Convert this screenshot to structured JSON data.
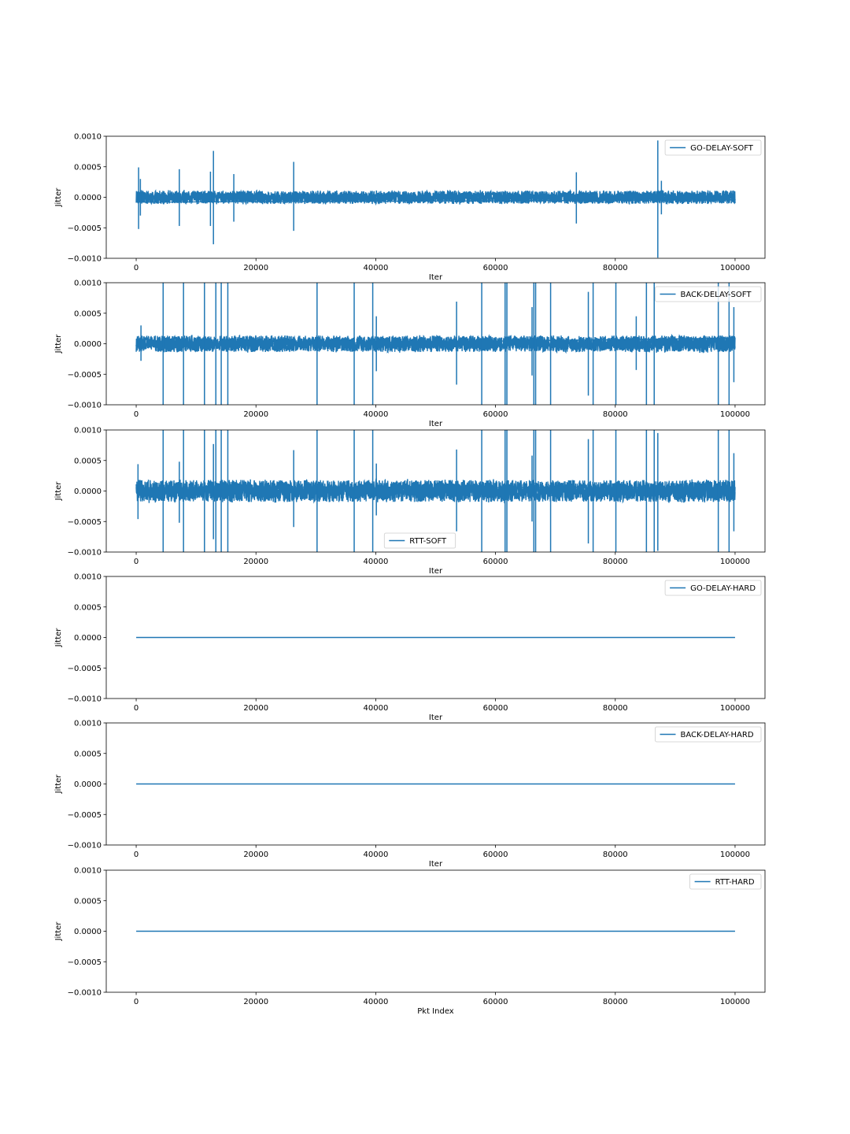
{
  "chart_data": [
    {
      "type": "line",
      "xlabel": "Iter",
      "ylabel": "Jitter",
      "xlim": [
        -5000,
        105000
      ],
      "ylim": [
        -0.001,
        0.001
      ],
      "xticks": [
        0,
        20000,
        40000,
        60000,
        80000,
        100000
      ],
      "yticks": [
        -0.001,
        -0.0005,
        0.0,
        0.0005,
        0.001
      ],
      "xtick_labels": [
        "0",
        "20000",
        "40000",
        "60000",
        "80000",
        "100000"
      ],
      "ytick_labels": [
        "−0.0010",
        "−0.0005",
        "0.0000",
        "0.0005",
        "0.0010"
      ],
      "grid": false,
      "legend_position": "upper right",
      "series": [
        {
          "name": "GO-DELAY-SOFT",
          "x_range": [
            0,
            100000
          ],
          "noise_amplitude": 0.00012,
          "spikes": [
            {
              "x": 400,
              "high": 0.00049,
              "low": -0.00052
            },
            {
              "x": 700,
              "high": 0.0003,
              "low": -0.0003
            },
            {
              "x": 7200,
              "high": 0.00046,
              "low": -0.00047
            },
            {
              "x": 12400,
              "high": 0.00042,
              "low": -0.00047
            },
            {
              "x": 12900,
              "high": 0.00076,
              "low": -0.00077
            },
            {
              "x": 16300,
              "high": 0.00038,
              "low": -0.0004
            },
            {
              "x": 26300,
              "high": 0.00058,
              "low": -0.00055
            },
            {
              "x": 73500,
              "high": 0.00041,
              "low": -0.00043
            },
            {
              "x": 87100,
              "high": 0.00093,
              "low": -0.00099
            },
            {
              "x": 87700,
              "high": 0.00027,
              "low": -0.00028
            }
          ]
        }
      ]
    },
    {
      "type": "line",
      "xlabel": "Iter",
      "ylabel": "Jitter",
      "xlim": [
        -5000,
        105000
      ],
      "ylim": [
        -0.001,
        0.001
      ],
      "xticks": [
        0,
        20000,
        40000,
        60000,
        80000,
        100000
      ],
      "yticks": [
        -0.001,
        -0.0005,
        0.0,
        0.0005,
        0.001
      ],
      "xtick_labels": [
        "0",
        "20000",
        "40000",
        "60000",
        "80000",
        "100000"
      ],
      "ytick_labels": [
        "−0.0010",
        "−0.0005",
        "0.0000",
        "0.0005",
        "0.0010"
      ],
      "grid": false,
      "legend_position": "upper right",
      "series": [
        {
          "name": "BACK-DELAY-SOFT",
          "x_range": [
            0,
            100000
          ],
          "noise_amplitude": 0.00015,
          "spikes": [
            {
              "x": 800,
              "high": 0.0003,
              "low": -0.00028
            },
            {
              "x": 4500,
              "high": 0.0012,
              "low": -0.0012
            },
            {
              "x": 7900,
              "high": 0.0012,
              "low": -0.0012
            },
            {
              "x": 11400,
              "high": 0.0012,
              "low": -0.0012
            },
            {
              "x": 13300,
              "high": 0.0012,
              "low": -0.0012
            },
            {
              "x": 14200,
              "high": 0.0012,
              "low": -0.0012
            },
            {
              "x": 15300,
              "high": 0.0012,
              "low": -0.0012
            },
            {
              "x": 30200,
              "high": 0.0012,
              "low": -0.0012
            },
            {
              "x": 36400,
              "high": 0.0012,
              "low": -0.0012
            },
            {
              "x": 39500,
              "high": 0.0012,
              "low": -0.0012
            },
            {
              "x": 40100,
              "high": 0.00045,
              "low": -0.00045
            },
            {
              "x": 53500,
              "high": 0.00069,
              "low": -0.00067
            },
            {
              "x": 57700,
              "high": 0.0012,
              "low": -0.0012
            },
            {
              "x": 61600,
              "high": 0.0012,
              "low": -0.0012
            },
            {
              "x": 61900,
              "high": 0.0012,
              "low": -0.0012
            },
            {
              "x": 66100,
              "high": 0.0006,
              "low": -0.00052
            },
            {
              "x": 66400,
              "high": 0.0012,
              "low": -0.0012
            },
            {
              "x": 66700,
              "high": 0.0012,
              "low": -0.0012
            },
            {
              "x": 69200,
              "high": 0.0012,
              "low": -0.0012
            },
            {
              "x": 75500,
              "high": 0.00085,
              "low": -0.00085
            },
            {
              "x": 76300,
              "high": 0.0012,
              "low": -0.0012
            },
            {
              "x": 80100,
              "high": 0.0012,
              "low": -0.0012
            },
            {
              "x": 83500,
              "high": 0.00045,
              "low": -0.00043
            },
            {
              "x": 85200,
              "high": 0.0012,
              "low": -0.0012
            },
            {
              "x": 86500,
              "high": 0.0012,
              "low": -0.0012
            },
            {
              "x": 97200,
              "high": 0.0012,
              "low": -0.0012
            },
            {
              "x": 99000,
              "high": 0.0012,
              "low": -0.0012
            },
            {
              "x": 99800,
              "high": 0.0006,
              "low": -0.00063
            }
          ]
        }
      ]
    },
    {
      "type": "line",
      "xlabel": "Iter",
      "ylabel": "Jitter",
      "xlim": [
        -5000,
        105000
      ],
      "ylim": [
        -0.001,
        0.001
      ],
      "xticks": [
        0,
        20000,
        40000,
        60000,
        80000,
        100000
      ],
      "yticks": [
        -0.001,
        -0.0005,
        0.0,
        0.0005,
        0.001
      ],
      "xtick_labels": [
        "0",
        "20000",
        "40000",
        "60000",
        "80000",
        "100000"
      ],
      "ytick_labels": [
        "−0.0010",
        "−0.0005",
        "0.0000",
        "0.0005",
        "0.0010"
      ],
      "grid": false,
      "legend_position": "lower center",
      "series": [
        {
          "name": "RTT-SOFT",
          "x_range": [
            0,
            100000
          ],
          "noise_amplitude": 0.0002,
          "spikes": [
            {
              "x": 300,
              "high": 0.00044,
              "low": -0.00046
            },
            {
              "x": 4500,
              "high": 0.0012,
              "low": -0.0012
            },
            {
              "x": 7200,
              "high": 0.00048,
              "low": -0.00052
            },
            {
              "x": 7900,
              "high": 0.0012,
              "low": -0.0012
            },
            {
              "x": 11400,
              "high": 0.0012,
              "low": -0.0012
            },
            {
              "x": 12900,
              "high": 0.00077,
              "low": -0.00079
            },
            {
              "x": 13300,
              "high": 0.0012,
              "low": -0.0012
            },
            {
              "x": 14200,
              "high": 0.0012,
              "low": -0.0012
            },
            {
              "x": 15300,
              "high": 0.0012,
              "low": -0.0012
            },
            {
              "x": 26300,
              "high": 0.00067,
              "low": -0.00059
            },
            {
              "x": 30200,
              "high": 0.0012,
              "low": -0.0012
            },
            {
              "x": 36400,
              "high": 0.0012,
              "low": -0.0012
            },
            {
              "x": 39500,
              "high": 0.0012,
              "low": -0.0012
            },
            {
              "x": 40100,
              "high": 0.00045,
              "low": -0.0004
            },
            {
              "x": 53500,
              "high": 0.00068,
              "low": -0.00066
            },
            {
              "x": 57700,
              "high": 0.0012,
              "low": -0.0012
            },
            {
              "x": 61600,
              "high": 0.0012,
              "low": -0.0012
            },
            {
              "x": 61900,
              "high": 0.0012,
              "low": -0.0012
            },
            {
              "x": 66100,
              "high": 0.00058,
              "low": -0.0005
            },
            {
              "x": 66400,
              "high": 0.0012,
              "low": -0.0012
            },
            {
              "x": 66700,
              "high": 0.0012,
              "low": -0.0012
            },
            {
              "x": 69200,
              "high": 0.0012,
              "low": -0.0012
            },
            {
              "x": 75500,
              "high": 0.00085,
              "low": -0.00086
            },
            {
              "x": 76300,
              "high": 0.0012,
              "low": -0.0012
            },
            {
              "x": 80100,
              "high": 0.0012,
              "low": -0.0012
            },
            {
              "x": 85200,
              "high": 0.0012,
              "low": -0.0012
            },
            {
              "x": 86500,
              "high": 0.0012,
              "low": -0.0012
            },
            {
              "x": 87100,
              "high": 0.00095,
              "low": -0.00098
            },
            {
              "x": 97200,
              "high": 0.0012,
              "low": -0.0012
            },
            {
              "x": 99000,
              "high": 0.0012,
              "low": -0.0012
            },
            {
              "x": 99800,
              "high": 0.00062,
              "low": -0.00066
            }
          ]
        }
      ]
    },
    {
      "type": "line",
      "xlabel": "Iter",
      "ylabel": "Jitter",
      "xlim": [
        -5000,
        105000
      ],
      "ylim": [
        -0.001,
        0.001
      ],
      "xticks": [
        0,
        20000,
        40000,
        60000,
        80000,
        100000
      ],
      "yticks": [
        -0.001,
        -0.0005,
        0.0,
        0.0005,
        0.001
      ],
      "xtick_labels": [
        "0",
        "20000",
        "40000",
        "60000",
        "80000",
        "100000"
      ],
      "ytick_labels": [
        "−0.0010",
        "−0.0005",
        "0.0000",
        "0.0005",
        "0.0010"
      ],
      "grid": false,
      "legend_position": "upper right",
      "series": [
        {
          "name": "GO-DELAY-HARD",
          "x": [
            0,
            100000
          ],
          "y": [
            0.0,
            0.0
          ]
        }
      ]
    },
    {
      "type": "line",
      "xlabel": "Iter",
      "ylabel": "Jitter",
      "xlim": [
        -5000,
        105000
      ],
      "ylim": [
        -0.001,
        0.001
      ],
      "xticks": [
        0,
        20000,
        40000,
        60000,
        80000,
        100000
      ],
      "yticks": [
        -0.001,
        -0.0005,
        0.0,
        0.0005,
        0.001
      ],
      "xtick_labels": [
        "0",
        "20000",
        "40000",
        "60000",
        "80000",
        "100000"
      ],
      "ytick_labels": [
        "−0.0010",
        "−0.0005",
        "0.0000",
        "0.0005",
        "0.0010"
      ],
      "grid": false,
      "legend_position": "upper right",
      "series": [
        {
          "name": "BACK-DELAY-HARD",
          "x": [
            0,
            100000
          ],
          "y": [
            0.0,
            0.0
          ]
        }
      ]
    },
    {
      "type": "line",
      "xlabel": "Pkt Index",
      "ylabel": "Jitter",
      "xlim": [
        -5000,
        105000
      ],
      "ylim": [
        -0.001,
        0.001
      ],
      "xticks": [
        0,
        20000,
        40000,
        60000,
        80000,
        100000
      ],
      "yticks": [
        -0.001,
        -0.0005,
        0.0,
        0.0005,
        0.001
      ],
      "xtick_labels": [
        "0",
        "20000",
        "40000",
        "60000",
        "80000",
        "100000"
      ],
      "ytick_labels": [
        "−0.0010",
        "−0.0005",
        "0.0000",
        "0.0005",
        "0.0010"
      ],
      "grid": false,
      "legend_position": "upper right",
      "series": [
        {
          "name": "RTT-HARD",
          "x": [
            0,
            100000
          ],
          "y": [
            0.0,
            0.0
          ]
        }
      ]
    }
  ],
  "colors": {
    "series": "#1f77b4",
    "axes": "#000000",
    "legend_border": "#cccccc",
    "background": "#ffffff"
  }
}
